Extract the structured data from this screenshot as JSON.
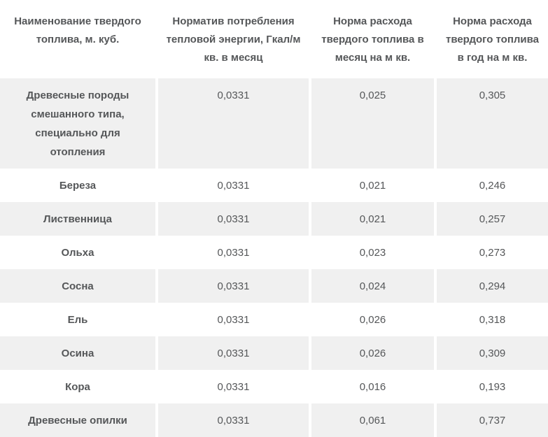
{
  "colors": {
    "stripe": "#f0f0f0",
    "gap": "#ffffff",
    "text": "#555759"
  },
  "table": {
    "header": {
      "col1": "Наименование твердого топлива, м. куб.",
      "col2": "Норматив потребления тепловой энергии, Гкал/м кв. в месяц",
      "col3": "Норма расхода твердого топлива в месяц на м кв.",
      "col4": "Норма расхода твердого топлива в год на м кв."
    },
    "rows": [
      {
        "name": "Древесные породы смешанного типа, специально для отопления",
        "consumption_norm": "0,0331",
        "monthly_rate": "0,025",
        "yearly_rate": "0,305"
      },
      {
        "name": "Береза",
        "consumption_norm": "0,0331",
        "monthly_rate": "0,021",
        "yearly_rate": "0,246"
      },
      {
        "name": "Лиственница",
        "consumption_norm": "0,0331",
        "monthly_rate": "0,021",
        "yearly_rate": "0,257"
      },
      {
        "name": "Ольха",
        "consumption_norm": "0,0331",
        "monthly_rate": "0,023",
        "yearly_rate": "0,273"
      },
      {
        "name": "Сосна",
        "consumption_norm": "0,0331",
        "monthly_rate": "0,024",
        "yearly_rate": "0,294"
      },
      {
        "name": "Ель",
        "consumption_norm": "0,0331",
        "monthly_rate": "0,026",
        "yearly_rate": "0,318"
      },
      {
        "name": "Осина",
        "consumption_norm": "0,0331",
        "monthly_rate": "0,026",
        "yearly_rate": "0,309"
      },
      {
        "name": "Кора",
        "consumption_norm": "0,0331",
        "monthly_rate": "0,016",
        "yearly_rate": "0,193"
      },
      {
        "name": "Древесные опилки",
        "consumption_norm": "0,0331",
        "monthly_rate": "0,061",
        "yearly_rate": "0,737"
      }
    ]
  }
}
